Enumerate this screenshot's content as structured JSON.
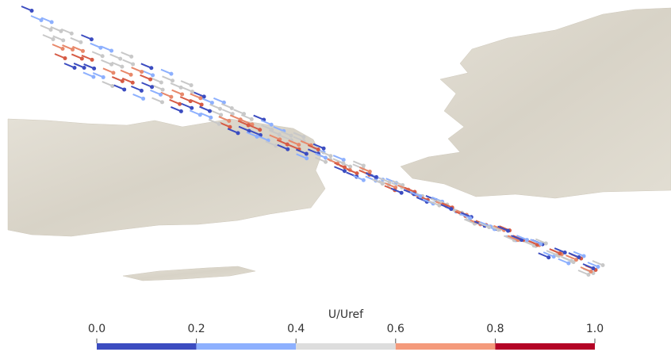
{
  "colorbar": {
    "title": "U/Uref",
    "ticks": [
      {
        "value": 0,
        "label": "0.0"
      },
      {
        "value": 0.2,
        "label": "0.2"
      },
      {
        "value": 0.4,
        "label": "0.4"
      },
      {
        "value": 0.6,
        "label": "0.6"
      },
      {
        "value": 0.8,
        "label": "0.8"
      },
      {
        "value": 1,
        "label": "1.0"
      }
    ],
    "colors": [
      "#3b4cc0",
      "#8db0fe",
      "#dddddd",
      "#f49a7b",
      "#b40426"
    ]
  }
}
